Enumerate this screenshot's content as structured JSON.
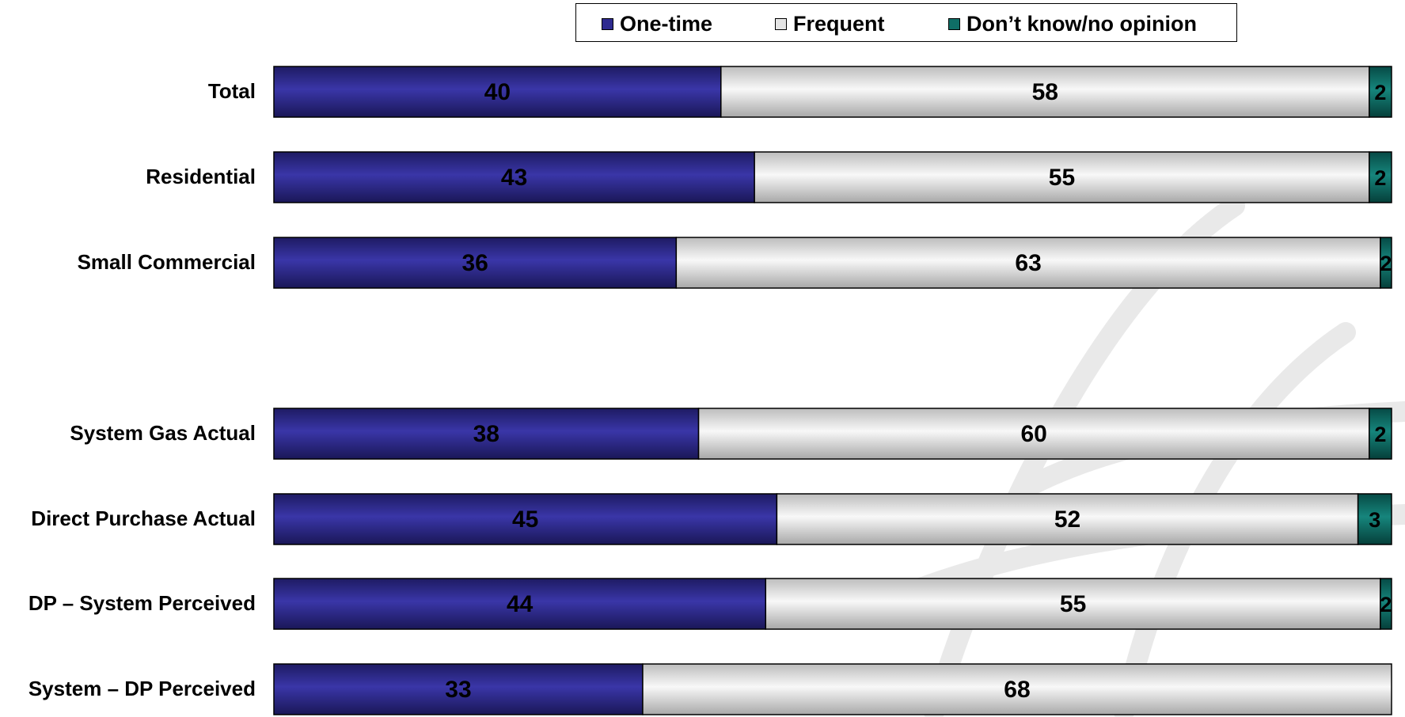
{
  "chart_data": {
    "type": "bar",
    "orientation": "horizontal",
    "stacked": true,
    "categories": [
      "Total",
      "Residential",
      "Small Commercial",
      "System Gas Actual",
      "Direct Purchase Actual",
      "DP – System Perceived",
      "System – DP Perceived"
    ],
    "series": [
      {
        "name": "One-time",
        "values": [
          40,
          43,
          36,
          38,
          45,
          44,
          33
        ]
      },
      {
        "name": "Frequent",
        "values": [
          58,
          55,
          63,
          60,
          52,
          55,
          68
        ]
      },
      {
        "name": "Don’t know/no opinion",
        "values": [
          2,
          2,
          2,
          2,
          3,
          2,
          null
        ]
      }
    ],
    "xlim": [
      0,
      100
    ],
    "legend_position": "top",
    "grid": false,
    "data_labels": true
  },
  "colors": {
    "one_time": "#2e2a8f",
    "frequent": "#e4e4e4",
    "dont_know": "#0f6e66"
  }
}
